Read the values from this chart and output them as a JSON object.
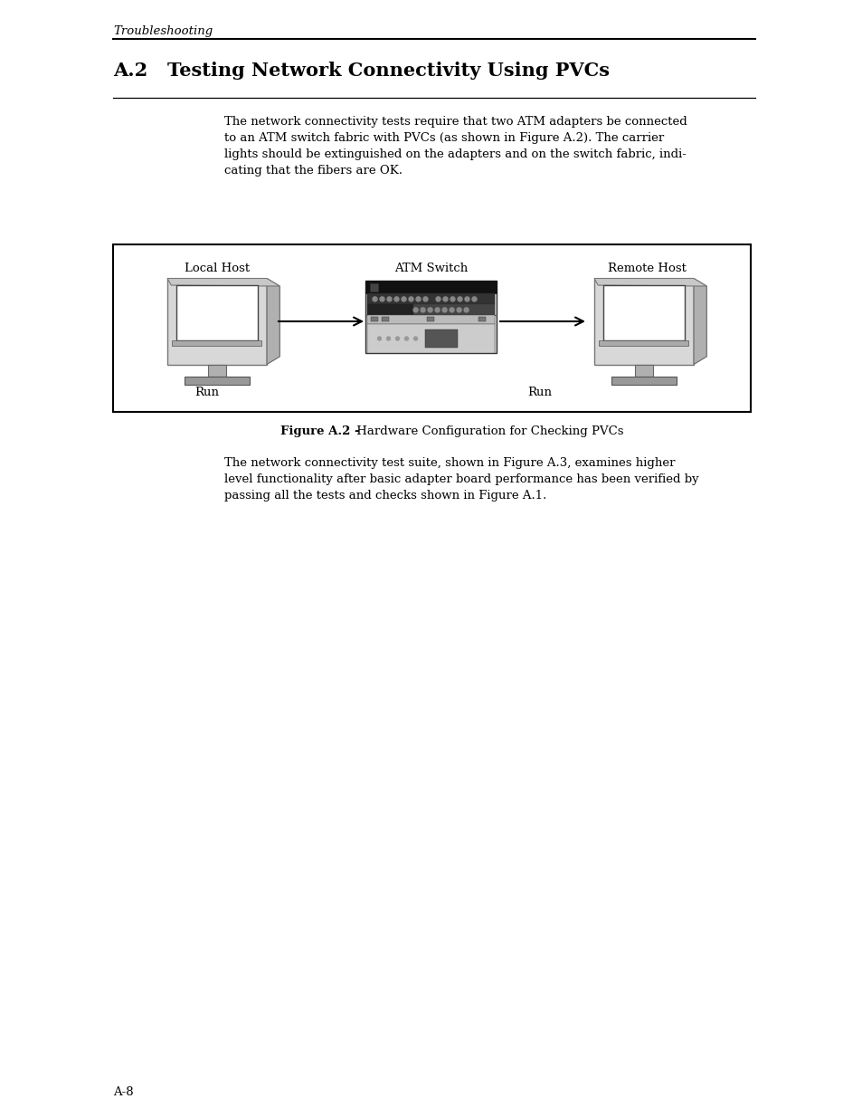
{
  "page_bg": "#ffffff",
  "header_italic": "Troubleshooting",
  "section_title": "A.2   Testing Network Connectivity Using PVCs",
  "body_text_1_lines": [
    "The network connectivity tests require that two ATM adapters be connected",
    "to an ATM switch fabric with PVCs (as shown in Figure A.2). The carrier",
    "lights should be extinguished on the adapters and on the switch fabric, indi-",
    "cating that the fibers are OK."
  ],
  "label_local_host": "Local Host",
  "label_atm_switch": "ATM Switch",
  "label_remote_host": "Remote Host",
  "label_run_left": "Run",
  "label_run_right": "Run",
  "fig_caption_bold": "Figure A.2 -",
  "fig_caption_normal": " Hardware Configuration for Checking PVCs",
  "body_text_2_lines": [
    "The network connectivity test suite, shown in Figure A.3, examines higher",
    "level functionality after basic adapter board performance has been verified by",
    "passing all the tests and checks shown in Figure A.1."
  ],
  "footer_text": "A-8"
}
